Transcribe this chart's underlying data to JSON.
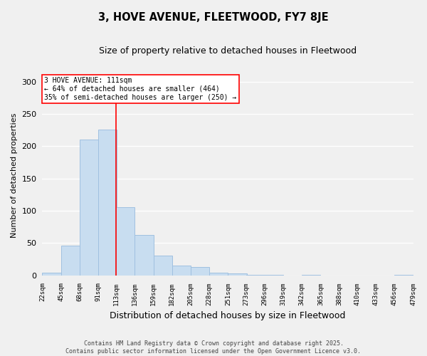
{
  "title": "3, HOVE AVENUE, FLEETWOOD, FY7 8JE",
  "subtitle": "Size of property relative to detached houses in Fleetwood",
  "xlabel": "Distribution of detached houses by size in Fleetwood",
  "ylabel": "Number of detached properties",
  "bar_color": "#c8ddf0",
  "bar_edge_color": "#a0c0e0",
  "background_color": "#f0f0f0",
  "grid_color": "#ffffff",
  "bin_edges": [
    22,
    45,
    68,
    91,
    113,
    136,
    159,
    182,
    205,
    228,
    251,
    273,
    296,
    319,
    342,
    365,
    388,
    410,
    433,
    456,
    479
  ],
  "bin_labels": [
    "22sqm",
    "45sqm",
    "68sqm",
    "91sqm",
    "113sqm",
    "136sqm",
    "159sqm",
    "182sqm",
    "205sqm",
    "228sqm",
    "251sqm",
    "273sqm",
    "296sqm",
    "319sqm",
    "342sqm",
    "365sqm",
    "388sqm",
    "410sqm",
    "433sqm",
    "456sqm",
    "479sqm"
  ],
  "counts": [
    4,
    46,
    210,
    226,
    106,
    63,
    30,
    15,
    13,
    4,
    3,
    1,
    1,
    0,
    1,
    0,
    0,
    0,
    0,
    1
  ],
  "ylim": [
    0,
    310
  ],
  "yticks": [
    0,
    50,
    100,
    150,
    200,
    250,
    300
  ],
  "property_line_x": 113,
  "annotation_title": "3 HOVE AVENUE: 111sqm",
  "annotation_line1": "← 64% of detached houses are smaller (464)",
  "annotation_line2": "35% of semi-detached houses are larger (250) →",
  "footer_line1": "Contains HM Land Registry data © Crown copyright and database right 2025.",
  "footer_line2": "Contains public sector information licensed under the Open Government Licence v3.0."
}
